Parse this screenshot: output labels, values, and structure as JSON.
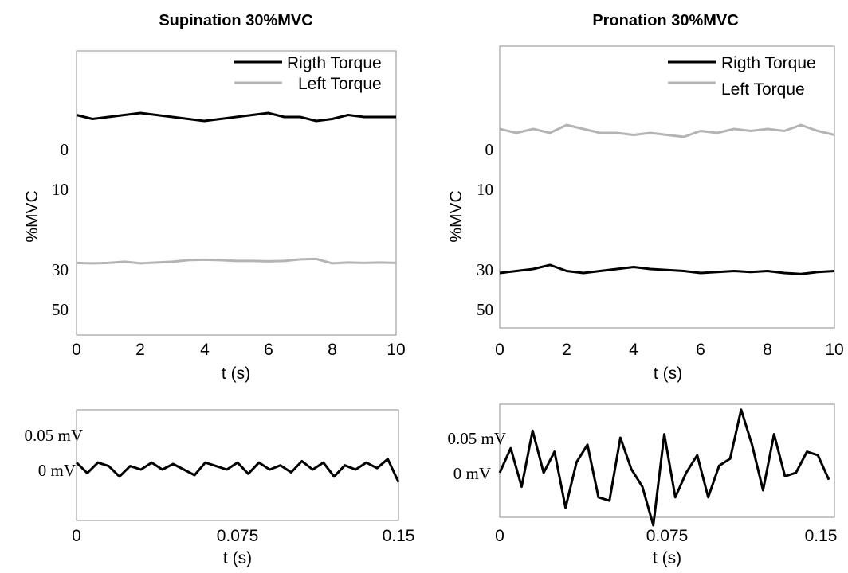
{
  "chart_data": [
    {
      "type": "line",
      "title": "Supination 30%MVC",
      "xlabel": "t (s)",
      "ylabel": "%MVC",
      "xlim": [
        0,
        10
      ],
      "xticks": [
        "0",
        "2",
        "4",
        "6",
        "8",
        "10"
      ],
      "yticks": [
        "0",
        "10",
        "30",
        "50"
      ],
      "legend": {
        "position": "top-right",
        "entries": [
          "Rigth Torque",
          "Left Torque"
        ]
      },
      "series": [
        {
          "name": "Rigth Torque",
          "color": "#000000",
          "x": [
            0,
            0.5,
            1,
            1.5,
            2,
            2.5,
            3,
            3.5,
            4,
            4.5,
            5,
            5.5,
            6,
            6.5,
            7,
            7.5,
            8,
            8.5,
            9,
            9.5,
            10
          ],
          "y": [
            -8.5,
            -7.5,
            -8,
            -8.5,
            -9,
            -8.5,
            -8,
            -7.5,
            -7,
            -7.5,
            -8,
            -8.5,
            -9,
            -8,
            -8,
            -7,
            -7.5,
            -8.5,
            -8,
            -8,
            -8
          ]
        },
        {
          "name": "Left Torque",
          "color": "#b4b4b4",
          "x": [
            0,
            0.5,
            1,
            1.5,
            2,
            2.5,
            3,
            3.5,
            4,
            4.5,
            5,
            5.5,
            6,
            6.5,
            7,
            7.5,
            8,
            8.5,
            9,
            9.5,
            10
          ],
          "y": [
            28.5,
            28.6,
            28.5,
            28.2,
            28.6,
            28.4,
            28.2,
            27.8,
            27.7,
            27.8,
            28,
            28,
            28.1,
            28,
            27.6,
            27.5,
            28.6,
            28.4,
            28.5,
            28.4,
            28.5
          ]
        }
      ]
    },
    {
      "type": "line",
      "title": "Pronation 30%MVC",
      "xlabel": "t (s)",
      "ylabel": "%MVC",
      "xlim": [
        0,
        10
      ],
      "xticks": [
        "0",
        "2",
        "4",
        "6",
        "8",
        "10"
      ],
      "yticks": [
        "0",
        "10",
        "30",
        "50"
      ],
      "legend": {
        "position": "top-right",
        "entries": [
          "Rigth Torque",
          "Left Torque"
        ]
      },
      "series": [
        {
          "name": "Rigth Torque",
          "color": "#000000",
          "x": [
            0,
            0.5,
            1,
            1.5,
            2,
            2.5,
            3,
            3.5,
            4,
            4.5,
            5,
            5.5,
            6,
            6.5,
            7,
            7.5,
            8,
            8.5,
            9,
            9.5,
            10
          ],
          "y": [
            32,
            31,
            30,
            29,
            31,
            32,
            31,
            30,
            29.5,
            30,
            30.5,
            31,
            32,
            31.5,
            31,
            31.5,
            31,
            32,
            32.5,
            31.5,
            31
          ]
        },
        {
          "name": "Left Torque",
          "color": "#b4b4b4",
          "x": [
            0,
            0.5,
            1,
            1.5,
            2,
            2.5,
            3,
            3.5,
            4,
            4.5,
            5,
            5.5,
            6,
            6.5,
            7,
            7.5,
            8,
            8.5,
            9,
            9.5,
            10
          ],
          "y": [
            -5,
            -4,
            -5,
            -4,
            -6,
            -5,
            -4,
            -4,
            -3.5,
            -4,
            -3.5,
            -3,
            -4.5,
            -4,
            -5,
            -4.5,
            -5,
            -4.5,
            -6,
            -4.5,
            -3.5
          ]
        }
      ]
    },
    {
      "type": "line",
      "xlabel": "t (s)",
      "xlim": [
        0,
        0.15
      ],
      "xticks": [
        "0",
        "0.075",
        "0.15"
      ],
      "yticks": [
        "0.05 mV",
        "0 mV"
      ],
      "series": [
        {
          "color": "#000000",
          "x": [
            0,
            0.005,
            0.01,
            0.015,
            0.02,
            0.025,
            0.03,
            0.035,
            0.04,
            0.045,
            0.05,
            0.055,
            0.06,
            0.065,
            0.07,
            0.075,
            0.08,
            0.085,
            0.09,
            0.095,
            0.1,
            0.105,
            0.11,
            0.115,
            0.12,
            0.125,
            0.13,
            0.135,
            0.14,
            0.145,
            0.15
          ],
          "y": [
            0.01,
            -0.005,
            0.01,
            0.005,
            -0.01,
            0.005,
            0.0,
            0.01,
            0.0,
            0.008,
            0.0,
            -0.008,
            0.01,
            0.005,
            0.0,
            0.01,
            -0.006,
            0.01,
            0.0,
            0.006,
            -0.004,
            0.012,
            0.0,
            0.01,
            -0.01,
            0.006,
            0.0,
            0.01,
            0.002,
            0.015,
            -0.018
          ]
        }
      ]
    },
    {
      "type": "line",
      "xlabel": "t (s)",
      "xlim": [
        0,
        0.15
      ],
      "xticks": [
        "0",
        "0.075",
        "0.15"
      ],
      "yticks": [
        "0.05 mV",
        "0 mV"
      ],
      "series": [
        {
          "color": "#000000",
          "x": [
            0,
            0.005,
            0.01,
            0.015,
            0.02,
            0.025,
            0.03,
            0.035,
            0.04,
            0.045,
            0.05,
            0.055,
            0.06,
            0.065,
            0.07,
            0.075,
            0.08,
            0.085,
            0.09,
            0.095,
            0.1,
            0.105,
            0.11,
            0.115,
            0.12,
            0.125,
            0.13,
            0.135,
            0.14,
            0.145,
            0.15
          ],
          "y": [
            0.0,
            0.035,
            -0.02,
            0.06,
            0.0,
            0.03,
            -0.05,
            0.015,
            0.04,
            -0.035,
            -0.04,
            0.05,
            0.005,
            -0.02,
            -0.075,
            0.055,
            -0.035,
            0.0,
            0.025,
            -0.035,
            0.01,
            0.02,
            0.09,
            0.04,
            -0.025,
            0.055,
            -0.005,
            0.0,
            0.03,
            0.025,
            -0.01
          ]
        }
      ]
    }
  ]
}
